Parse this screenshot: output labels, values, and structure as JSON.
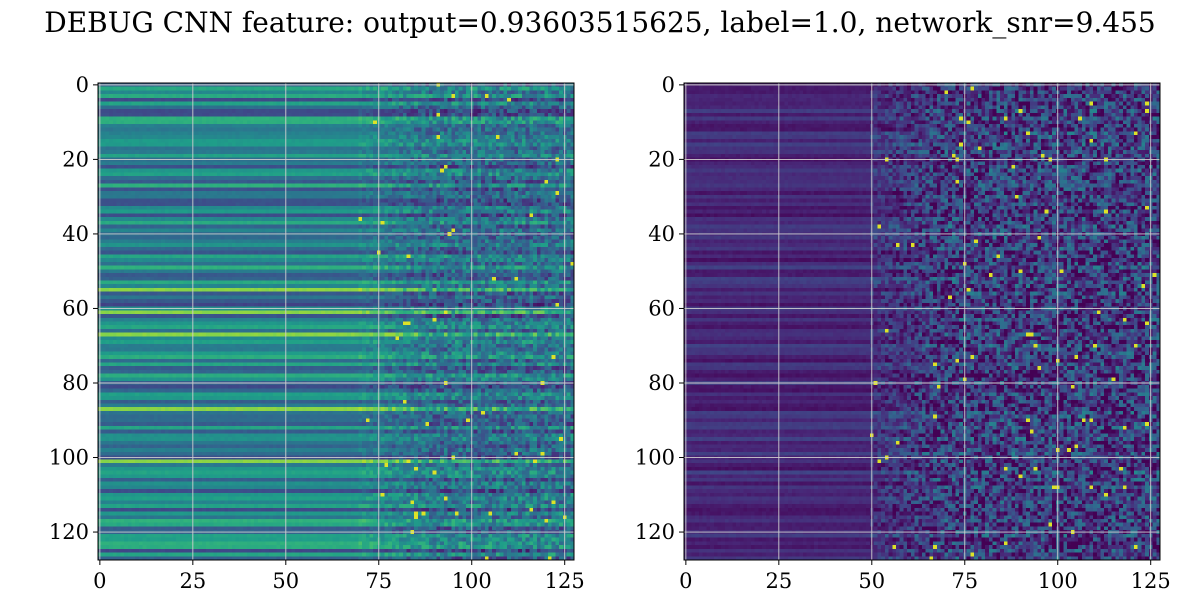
{
  "figure": {
    "title": "DEBUG CNN feature: output=0.93603515625, label=1.0, network_snr=9.455"
  },
  "colors": {
    "colormap": "viridis",
    "grid": "#cfcfcf",
    "axes_edge": "#000000"
  },
  "chart_data": [
    {
      "type": "heatmap",
      "colormap": "viridis",
      "grid": true,
      "shape": [
        128,
        128
      ],
      "xlim": [
        -0.5,
        127.5
      ],
      "ylim": [
        127.5,
        -0.5
      ],
      "y_inverted": true,
      "x_ticks": [
        0,
        25,
        50,
        75,
        100,
        125
      ],
      "y_ticks": [
        0,
        20,
        40,
        60,
        80,
        100,
        120
      ],
      "x_tick_labels": [
        "0",
        "25",
        "50",
        "75",
        "100",
        "125"
      ],
      "y_tick_labels": [
        "0",
        "20",
        "40",
        "60",
        "80",
        "100",
        "120"
      ],
      "value_range": [
        0,
        1
      ],
      "smooth_until_col": 70,
      "base_level": 0.42,
      "row_variation": 0.22,
      "noise_level": 0.22,
      "bright_rows": [
        55,
        61,
        67,
        87,
        101
      ],
      "bright_row_level": 0.82,
      "seed": 7
    },
    {
      "type": "heatmap",
      "colormap": "viridis",
      "grid": true,
      "shape": [
        128,
        128
      ],
      "xlim": [
        -0.5,
        127.5
      ],
      "ylim": [
        127.5,
        -0.5
      ],
      "y_inverted": true,
      "x_ticks": [
        0,
        25,
        50,
        75,
        100,
        125
      ],
      "y_ticks": [
        0,
        20,
        40,
        60,
        80,
        100,
        120
      ],
      "x_tick_labels": [
        "0",
        "25",
        "50",
        "75",
        "100",
        "125"
      ],
      "y_tick_labels": [
        "0",
        "20",
        "40",
        "60",
        "80",
        "100",
        "120"
      ],
      "value_range": [
        0,
        1
      ],
      "smooth_until_col": 50,
      "base_level": 0.12,
      "row_variation": 0.08,
      "noise_level": 0.32,
      "bright_rows": [],
      "bright_row_level": 0.0,
      "seed": 21
    }
  ]
}
